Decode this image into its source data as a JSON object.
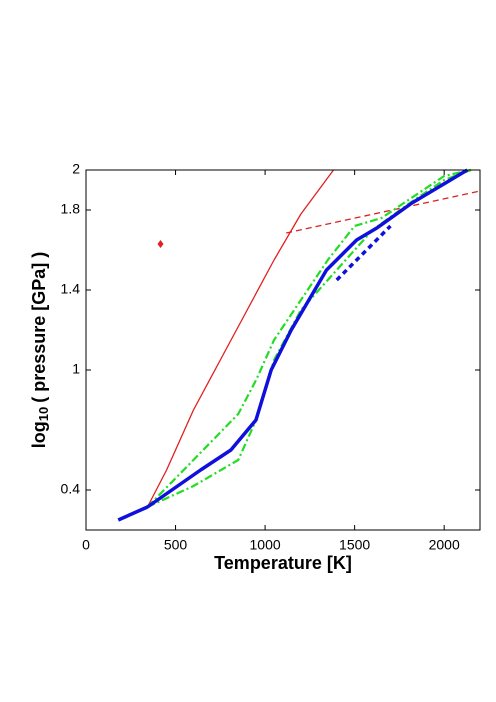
{
  "chart_data": {
    "type": "line",
    "xlabel": "Temperature [K]",
    "ylabel": [
      "log",
      "10",
      "( pressure [GPa] )"
    ],
    "xlim": [
      0,
      2200
    ],
    "xticks": [
      0,
      500,
      1000,
      1500,
      2000
    ],
    "ylim": [
      0.2,
      2
    ],
    "yticks": [
      0.4,
      1,
      1.4,
      1.8,
      2
    ],
    "series": [
      {
        "color": "#e02020",
        "style": "solid",
        "width": 1.3,
        "x": [
          343,
          450,
          600,
          750,
          900,
          1050,
          1200,
          1382
        ],
        "values": [
          0.315,
          0.5,
          0.8,
          1.05,
          1.3,
          1.55,
          1.78,
          2.0
        ]
      },
      {
        "color": "#e02020",
        "style": "dashed",
        "width": 1.3,
        "x": [
          1118,
          2200
        ],
        "values": [
          1.685,
          1.895
        ]
      },
      {
        "color": "#22dd22",
        "style": "dashdot",
        "width": 2.2,
        "x": [
          343,
          600,
          850,
          950,
          1050,
          1200,
          1350,
          1500,
          1650,
          1800,
          2000,
          2150
        ],
        "values": [
          0.315,
          0.55,
          0.78,
          0.95,
          1.15,
          1.35,
          1.55,
          1.72,
          1.76,
          1.85,
          1.97,
          2.0
        ]
      },
      {
        "color": "#22dd22",
        "style": "dashdot",
        "width": 2.2,
        "x": [
          343,
          600,
          850,
          950,
          1050,
          1200,
          1400,
          1600,
          1800,
          2000,
          2150
        ],
        "values": [
          0.315,
          0.42,
          0.55,
          0.75,
          1.05,
          1.3,
          1.5,
          1.7,
          1.83,
          1.95,
          2.0
        ]
      },
      {
        "color": "#1010dd",
        "style": "solid",
        "width": 3.5,
        "x": [
          180,
          343,
          640,
          809,
          949,
          1034,
          1146,
          1343,
          1511,
          1624,
          1820,
          2129
        ],
        "values": [
          0.25,
          0.315,
          0.5,
          0.6,
          0.75,
          1.0,
          1.2,
          1.5,
          1.65,
          1.71,
          1.835,
          2.0
        ]
      },
      {
        "color": "#1010dd",
        "style": "dotted",
        "width": 3.5,
        "x": [
          1400,
          1700
        ],
        "values": [
          1.45,
          1.72
        ]
      }
    ],
    "points": [
      {
        "color": "#e02020",
        "x": 416,
        "y": 1.63
      }
    ]
  }
}
